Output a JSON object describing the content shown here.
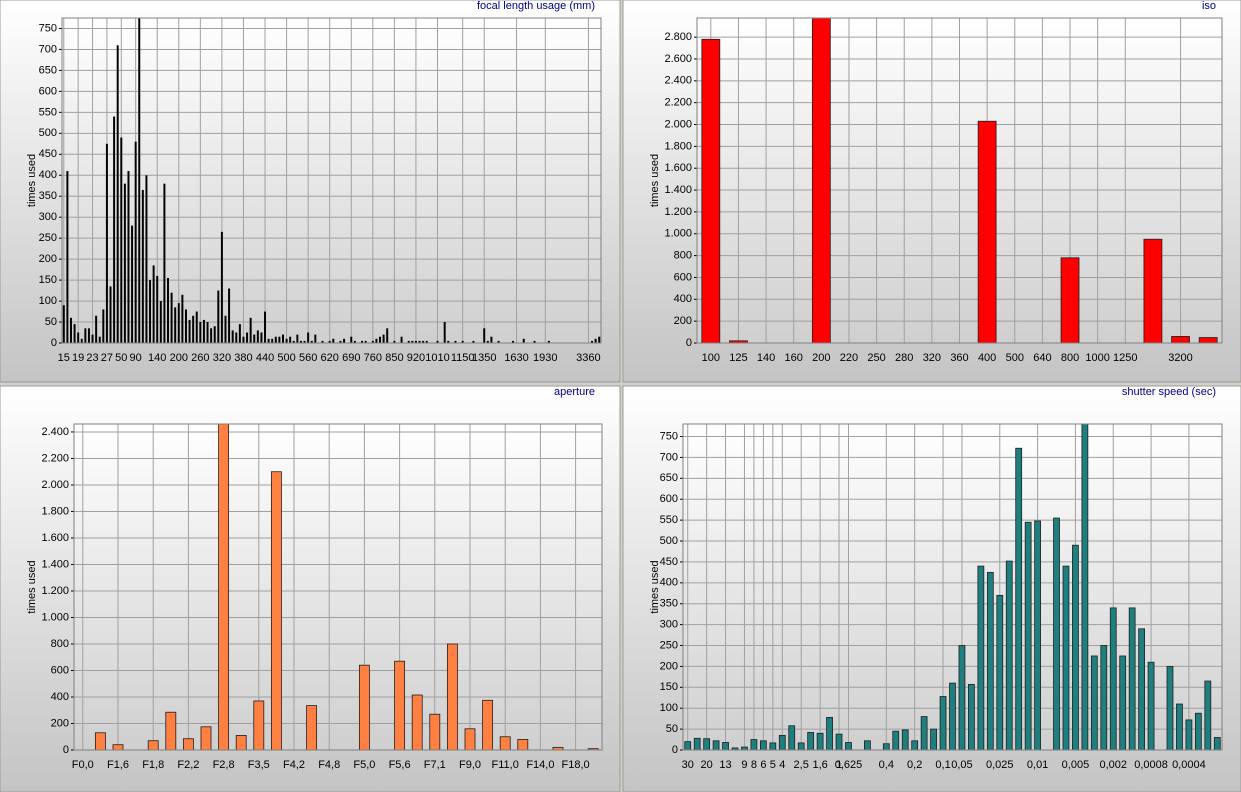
{
  "chart_data": [
    {
      "type": "bar",
      "title": "focal length usage (mm)",
      "y_label": "times used",
      "color": "#000000",
      "grid": true,
      "categories": [
        "15",
        null,
        null,
        null,
        "19",
        null,
        null,
        null,
        "23",
        null,
        null,
        null,
        "27",
        null,
        null,
        null,
        "50",
        null,
        null,
        null,
        "90",
        null,
        null,
        null,
        null,
        null,
        "140",
        null,
        null,
        null,
        null,
        null,
        "200",
        null,
        null,
        null,
        null,
        null,
        "260",
        null,
        null,
        null,
        null,
        null,
        "320",
        null,
        null,
        null,
        null,
        null,
        "380",
        null,
        null,
        null,
        null,
        null,
        "440",
        null,
        null,
        null,
        null,
        null,
        "500",
        null,
        null,
        null,
        null,
        null,
        "560",
        null,
        null,
        null,
        null,
        null,
        "620",
        null,
        null,
        null,
        null,
        null,
        "690",
        null,
        null,
        null,
        null,
        null,
        "760",
        null,
        null,
        null,
        null,
        null,
        "850",
        null,
        null,
        null,
        null,
        null,
        "920",
        null,
        null,
        null,
        null,
        null,
        "1010",
        null,
        null,
        null,
        null,
        null,
        null,
        "1150",
        null,
        null,
        null,
        null,
        null,
        "1350",
        null,
        null,
        null,
        null,
        null,
        null,
        null,
        null,
        "1630",
        null,
        null,
        null,
        null,
        null,
        null,
        null,
        "1930",
        null,
        null,
        null,
        null,
        null,
        null,
        null,
        null,
        null,
        null,
        null,
        "3360",
        null,
        null,
        null
      ],
      "values": [
        90,
        410,
        60,
        45,
        25,
        10,
        35,
        35,
        20,
        65,
        15,
        80,
        475,
        135,
        540,
        710,
        490,
        380,
        410,
        280,
        480,
        775,
        365,
        400,
        150,
        185,
        160,
        100,
        380,
        155,
        120,
        85,
        95,
        115,
        80,
        55,
        65,
        75,
        50,
        55,
        50,
        35,
        40,
        125,
        265,
        65,
        130,
        30,
        25,
        45,
        15,
        25,
        60,
        20,
        30,
        25,
        75,
        10,
        10,
        15,
        15,
        20,
        10,
        15,
        5,
        20,
        5,
        5,
        25,
        5,
        20,
        0,
        5,
        0,
        5,
        10,
        0,
        5,
        10,
        0,
        15,
        5,
        0,
        5,
        5,
        0,
        5,
        10,
        15,
        20,
        35,
        0,
        5,
        0,
        15,
        0,
        5,
        5,
        5,
        5,
        5,
        5,
        0,
        0,
        5,
        0,
        50,
        5,
        0,
        5,
        0,
        5,
        0,
        0,
        5,
        0,
        0,
        35,
        5,
        15,
        0,
        5,
        0,
        0,
        0,
        5,
        0,
        0,
        10,
        0,
        0,
        5,
        0,
        0,
        0,
        5,
        0,
        0,
        0,
        0,
        0,
        0,
        0,
        0,
        0,
        0,
        0,
        5,
        10,
        15
      ],
      "ylim": [
        0,
        775
      ],
      "yticks": [
        0,
        50,
        100,
        150,
        200,
        250,
        300,
        350,
        400,
        450,
        500,
        550,
        600,
        650,
        700,
        750
      ]
    },
    {
      "type": "bar",
      "title": "iso",
      "y_label": "times used",
      "color": "#ff0000",
      "grid": true,
      "categories": [
        "100",
        "125",
        "140",
        "160",
        "200",
        "220",
        "250",
        "280",
        "320",
        "360",
        "400",
        "500",
        "640",
        "800",
        "1000",
        "1250",
        null,
        "3200",
        null
      ],
      "values": [
        2780,
        20,
        0,
        0,
        2975,
        0,
        0,
        0,
        0,
        0,
        2030,
        0,
        0,
        780,
        0,
        0,
        950,
        60,
        50
      ],
      "ylim": [
        0,
        2975
      ],
      "yticks": [
        0,
        200,
        400,
        600,
        800,
        {
          "value": 1000,
          "label": "1.000"
        },
        {
          "value": 1200,
          "label": "1.200"
        },
        {
          "value": 1400,
          "label": "1.400"
        },
        {
          "value": 1600,
          "label": "1.600"
        },
        {
          "value": 1800,
          "label": "1.800"
        },
        {
          "value": 2000,
          "label": "2.000"
        },
        {
          "value": 2200,
          "label": "2.200"
        },
        {
          "value": 2400,
          "label": "2.400"
        },
        {
          "value": 2600,
          "label": "2.600"
        },
        {
          "value": 2800,
          "label": "2.800"
        }
      ]
    },
    {
      "type": "bar",
      "title": "aperture",
      "y_label": "times used",
      "color": "#ff8040",
      "grid": true,
      "categories": [
        "F0,0",
        null,
        "F1,6",
        null,
        "F1,8",
        null,
        "F2,2",
        null,
        "F2,8",
        null,
        "F3,5",
        null,
        "F4,2",
        null,
        "F4,8",
        null,
        "F5,0",
        null,
        "F5,6",
        null,
        "F7,1",
        null,
        "F9,0",
        null,
        "F11,0",
        null,
        "F14,0",
        null,
        "F18,0",
        null
      ],
      "values": [
        0,
        130,
        40,
        0,
        70,
        285,
        85,
        175,
        2460,
        110,
        370,
        2100,
        0,
        335,
        0,
        0,
        640,
        0,
        670,
        415,
        270,
        800,
        160,
        375,
        100,
        80,
        0,
        20,
        0,
        10
      ],
      "ylim": [
        0,
        2460
      ],
      "yticks": [
        0,
        200,
        400,
        600,
        800,
        {
          "value": 1000,
          "label": "1.000"
        },
        {
          "value": 1200,
          "label": "1.200"
        },
        {
          "value": 1400,
          "label": "1.400"
        },
        {
          "value": 1600,
          "label": "1.600"
        },
        {
          "value": 1800,
          "label": "1.800"
        },
        {
          "value": 2000,
          "label": "2.000"
        },
        {
          "value": 2200,
          "label": "2.200"
        },
        {
          "value": 2400,
          "label": "2.400"
        }
      ]
    },
    {
      "type": "bar",
      "title": "shutter speed (sec)",
      "y_label": "times used",
      "color": "#1f7f7f",
      "grid": true,
      "categories": [
        "30",
        null,
        "20",
        null,
        "13",
        null,
        "9",
        "8",
        "6",
        "5",
        "4",
        null,
        "2,5",
        null,
        "1,6",
        null,
        "1",
        "0,625",
        null,
        null,
        null,
        "0,4",
        null,
        null,
        "0,2",
        null,
        null,
        "0,1",
        null,
        "0,05",
        null,
        null,
        null,
        "0,025",
        null,
        null,
        null,
        "0,01",
        null,
        null,
        null,
        "0,005",
        null,
        null,
        null,
        "0,002",
        null,
        null,
        null,
        "0,0008",
        null,
        null,
        null,
        "0,0004",
        null,
        null,
        null
      ],
      "values": [
        20,
        28,
        27,
        22,
        18,
        5,
        7,
        25,
        22,
        17,
        35,
        58,
        17,
        42,
        40,
        78,
        38,
        18,
        0,
        22,
        0,
        15,
        45,
        48,
        22,
        80,
        50,
        128,
        160,
        250,
        157,
        440,
        425,
        370,
        452,
        722,
        545,
        548,
        0,
        555,
        440,
        490,
        780,
        225,
        250,
        340,
        225,
        340,
        290,
        210,
        0,
        200,
        110,
        72,
        88,
        165,
        30
      ],
      "ylim": [
        0,
        780
      ],
      "yticks": [
        0,
        50,
        100,
        150,
        200,
        250,
        300,
        350,
        400,
        450,
        500,
        550,
        600,
        650,
        700,
        750
      ]
    }
  ]
}
